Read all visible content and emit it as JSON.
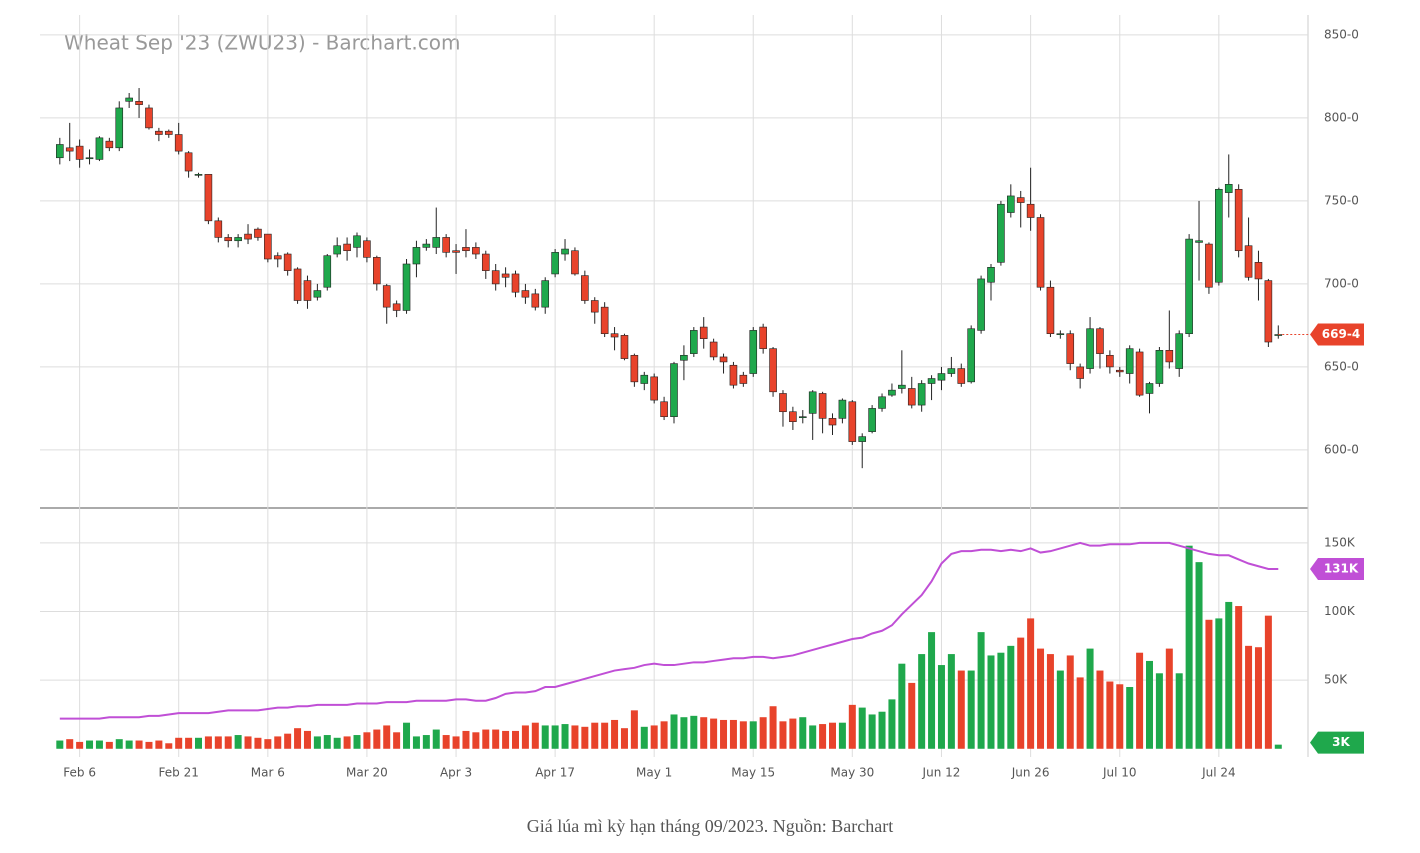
{
  "chart_data": {
    "type": "candlestick",
    "title": "Wheat Sep '23 (ZWU23) - Barchart.com",
    "caption": "Giá lúa mì kỳ hạn tháng 09/2023. Nguồn: Barchart",
    "up_color": "#1fa84c",
    "down_color": "#e8432b",
    "grid": true,
    "open": [
      776,
      782,
      783,
      776,
      775,
      786,
      782,
      810,
      810,
      806,
      792,
      792,
      790,
      779,
      766,
      766,
      738,
      728,
      726,
      730,
      733,
      730,
      717,
      718,
      709,
      702,
      692,
      698,
      718,
      724,
      722,
      726,
      716,
      699,
      688,
      684,
      712,
      722,
      722,
      728,
      720,
      722,
      722,
      718,
      708,
      706,
      706,
      696,
      694,
      686,
      706,
      718,
      720,
      705,
      690,
      686,
      670,
      669,
      657,
      640,
      644,
      629,
      620,
      654,
      658,
      674,
      665,
      656,
      651,
      645,
      646,
      674,
      661,
      634,
      623,
      620,
      622,
      634,
      619,
      619,
      629,
      605,
      611,
      625,
      633,
      637,
      637,
      627,
      640,
      642,
      646,
      649,
      641,
      672,
      701,
      713,
      743,
      752,
      748,
      740,
      698,
      670,
      670,
      650,
      649,
      673,
      657,
      648,
      646,
      659,
      634,
      640,
      660,
      649,
      670,
      725,
      724,
      701,
      755,
      757,
      723,
      713,
      702,
      669
    ],
    "high": [
      788,
      797,
      787,
      781,
      789,
      788,
      810,
      815,
      818,
      808,
      794,
      793,
      797,
      780,
      767,
      766,
      740,
      730,
      730,
      736,
      734,
      730,
      719,
      719,
      710,
      705,
      700,
      718,
      728,
      728,
      731,
      728,
      717,
      700,
      690,
      715,
      726,
      727,
      746,
      730,
      724,
      733,
      725,
      720,
      712,
      710,
      708,
      700,
      697,
      704,
      721,
      727,
      722,
      708,
      692,
      689,
      674,
      670,
      658,
      647,
      646,
      632,
      653,
      663,
      674,
      680,
      667,
      658,
      653,
      647,
      674,
      676,
      662,
      636,
      626,
      624,
      636,
      635,
      622,
      631,
      630,
      610,
      627,
      634,
      640,
      660,
      644,
      642,
      645,
      650,
      656,
      652,
      675,
      705,
      712,
      750,
      760,
      756,
      770,
      742,
      702,
      672,
      672,
      652,
      680,
      674,
      660,
      650,
      663,
      661,
      641,
      662,
      684,
      672,
      730,
      750,
      725,
      758,
      778,
      760,
      740,
      720,
      703,
      675
    ],
    "low": [
      772,
      774,
      770,
      772,
      774,
      780,
      780,
      806,
      800,
      793,
      786,
      788,
      778,
      764,
      764,
      736,
      725,
      722,
      722,
      724,
      726,
      713,
      710,
      705,
      688,
      685,
      690,
      696,
      716,
      714,
      716,
      713,
      696,
      676,
      680,
      682,
      704,
      720,
      718,
      716,
      706,
      716,
      715,
      703,
      696,
      698,
      692,
      688,
      684,
      682,
      704,
      714,
      705,
      688,
      676,
      668,
      660,
      654,
      638,
      636,
      628,
      618,
      616,
      642,
      656,
      661,
      654,
      646,
      637,
      638,
      644,
      658,
      632,
      614,
      612,
      616,
      606,
      610,
      609,
      616,
      603,
      589,
      610,
      623,
      632,
      634,
      625,
      623,
      630,
      636,
      644,
      638,
      640,
      670,
      690,
      711,
      740,
      734,
      732,
      696,
      668,
      667,
      648,
      637,
      646,
      649,
      646,
      644,
      640,
      632,
      622,
      638,
      649,
      644,
      668,
      702,
      694,
      699,
      740,
      716,
      702,
      690,
      662,
      667
    ],
    "close": [
      784,
      780,
      775,
      776,
      788,
      782,
      806,
      812,
      808,
      794,
      790,
      790,
      780,
      768,
      766,
      738,
      728,
      726,
      728,
      727,
      728,
      715,
      715,
      708,
      690,
      690,
      696,
      717,
      723,
      720,
      729,
      716,
      700,
      686,
      684,
      712,
      722,
      724,
      728,
      719,
      719,
      720,
      718,
      708,
      700,
      704,
      695,
      692,
      686,
      702,
      719,
      721,
      706,
      690,
      683,
      670,
      668,
      655,
      641,
      645,
      630,
      620,
      652,
      657,
      672,
      667,
      656,
      653,
      639,
      640,
      672,
      661,
      635,
      623,
      617,
      620,
      635,
      619,
      615,
      630,
      605,
      608,
      625,
      632,
      636,
      639,
      627,
      640,
      643,
      646,
      649,
      640,
      673,
      703,
      710,
      748,
      753,
      749,
      740,
      698,
      670,
      670,
      652,
      643,
      673,
      658,
      650,
      647,
      661,
      633,
      640,
      660,
      653,
      670,
      727,
      726,
      698,
      757,
      760,
      720,
      704,
      703,
      665,
      669.5
    ],
    "last_price": {
      "value": 669.5,
      "label": "669-4"
    },
    "ylim": [
      565,
      862
    ],
    "yticks": [
      {
        "value": 600,
        "label": "600-0"
      },
      {
        "value": 650,
        "label": "650-0"
      },
      {
        "value": 700,
        "label": "700-0"
      },
      {
        "value": 750,
        "label": "750-0"
      },
      {
        "value": 800,
        "label": "800-0"
      },
      {
        "value": 850,
        "label": "850-0"
      }
    ],
    "xlim": [
      -2,
      126
    ],
    "xticks": [
      {
        "value": 2,
        "label": "Feb 6"
      },
      {
        "value": 12,
        "label": "Feb 21"
      },
      {
        "value": 21,
        "label": "Mar 6"
      },
      {
        "value": 31,
        "label": "Mar 20"
      },
      {
        "value": 40,
        "label": "Apr 3"
      },
      {
        "value": 50,
        "label": "Apr 17"
      },
      {
        "value": 60,
        "label": "May 1"
      },
      {
        "value": 70,
        "label": "May 15"
      },
      {
        "value": 80,
        "label": "May 30"
      },
      {
        "value": 89,
        "label": "Jun 12"
      },
      {
        "value": 98,
        "label": "Jun 26"
      },
      {
        "value": 107,
        "label": "Jul 10"
      },
      {
        "value": 117,
        "label": "Jul 24"
      }
    ],
    "volume": [
      6000,
      7000,
      5000,
      6000,
      6000,
      5000,
      7000,
      6000,
      6000,
      5000,
      6000,
      4000,
      8000,
      8000,
      8000,
      9000,
      9000,
      9000,
      10000,
      9000,
      8000,
      7000,
      9000,
      11000,
      15000,
      13000,
      9000,
      10000,
      8000,
      9000,
      10000,
      12000,
      14000,
      17000,
      12000,
      19000,
      9000,
      10000,
      14000,
      10000,
      9000,
      13000,
      12000,
      14000,
      14000,
      13000,
      13000,
      17000,
      19000,
      17000,
      17000,
      18000,
      17000,
      16000,
      19000,
      19000,
      21000,
      15000,
      28000,
      16000,
      17000,
      20000,
      25000,
      23000,
      24000,
      23000,
      22000,
      21000,
      21000,
      20000,
      20000,
      23000,
      31000,
      20000,
      22000,
      23000,
      17000,
      18000,
      19000,
      19000,
      32000,
      30000,
      25000,
      27000,
      36000,
      62000,
      48000,
      69000,
      85000,
      61000,
      69000,
      57000,
      57000,
      85000,
      68000,
      70000,
      75000,
      81000,
      95000,
      73000,
      69000,
      57000,
      68000,
      52000,
      73000,
      57000,
      49000,
      47000,
      45000,
      70000,
      64000,
      55000,
      73000,
      55000,
      148000,
      136000,
      94000,
      95000,
      107000,
      104000,
      75000,
      74000,
      97000,
      3000
    ],
    "volume_label": "3K",
    "open_interest": [
      22000,
      22000,
      22000,
      22000,
      22000,
      23000,
      23000,
      23000,
      23000,
      24000,
      24000,
      25000,
      26000,
      26000,
      26000,
      26000,
      27000,
      28000,
      28000,
      28000,
      28000,
      29000,
      30000,
      30000,
      31000,
      31000,
      32000,
      32000,
      32000,
      32000,
      33000,
      33000,
      33000,
      34000,
      34000,
      34000,
      35000,
      35000,
      35000,
      35000,
      36000,
      36000,
      35000,
      35000,
      37000,
      40000,
      41000,
      41000,
      42000,
      45000,
      45000,
      47000,
      49000,
      51000,
      53000,
      55000,
      57000,
      58000,
      59000,
      61000,
      62000,
      61000,
      61000,
      62000,
      63000,
      63000,
      64000,
      65000,
      66000,
      66000,
      67000,
      67000,
      66000,
      67000,
      68000,
      70000,
      72000,
      74000,
      76000,
      78000,
      80000,
      81000,
      84000,
      86000,
      90000,
      98000,
      105000,
      112000,
      122000,
      135000,
      142000,
      144000,
      144000,
      145000,
      145000,
      144000,
      145000,
      144000,
      146000,
      143000,
      144000,
      146000,
      148000,
      150000,
      148000,
      148000,
      149000,
      149000,
      149000,
      150000,
      150000,
      150000,
      150000,
      148000,
      146000,
      144000,
      142000,
      141000,
      141000,
      138000,
      135000,
      133000,
      131000,
      131000
    ],
    "oi_color": "#c04fd6",
    "open_interest_label": "131K",
    "y2lim": [
      -6000,
      174000
    ],
    "y2ticks": [
      {
        "value": 50000,
        "label": "50K"
      },
      {
        "value": 100000,
        "label": "100K"
      },
      {
        "value": 150000,
        "label": "150K"
      }
    ]
  }
}
